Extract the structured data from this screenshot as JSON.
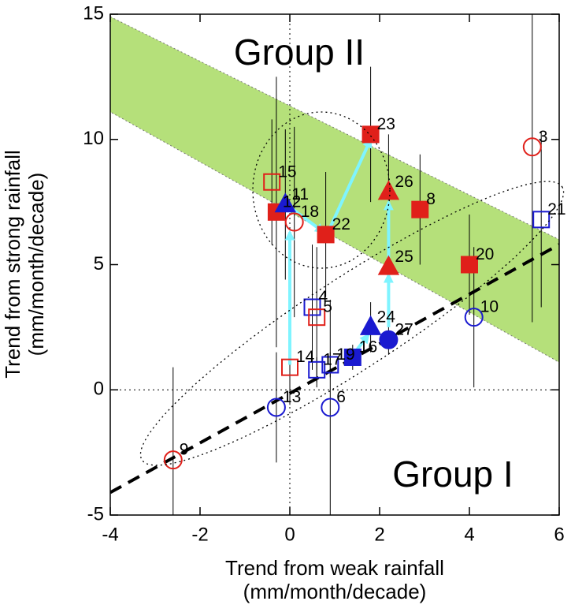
{
  "chart_data": {
    "type": "scatter",
    "title_group_upper": "Group II",
    "title_group_lower": "Group I",
    "x_label": [
      "Trend from weak rainfall",
      "(mm/month/decade)"
    ],
    "y_label": [
      "Trend from strong rainfall",
      "(mm/month/decade)"
    ],
    "xlim": [
      -4,
      6
    ],
    "ylim": [
      -5,
      15
    ],
    "xticks": [
      -4,
      -2,
      0,
      2,
      4,
      6
    ],
    "yticks": [
      -5,
      0,
      5,
      10,
      15
    ],
    "band": {
      "color": "#b5e07a",
      "x": [
        -4,
        6
      ],
      "upper": [
        14.9,
        6.0
      ],
      "lower": [
        11.1,
        1.1
      ]
    },
    "reference_line": {
      "x": [
        -4,
        6
      ],
      "y": [
        -4.1,
        5.8
      ]
    },
    "arrows": {
      "color": "#7ff4ff",
      "segments": [
        [
          0.0,
          1.0,
          0.0,
          6.3
        ],
        [
          0.0,
          7.3,
          0.75,
          6.3
        ],
        [
          0.85,
          6.3,
          1.8,
          10.0
        ],
        [
          1.45,
          1.5,
          1.75,
          2.2
        ],
        [
          2.2,
          2.5,
          2.2,
          4.6
        ],
        [
          2.2,
          5.1,
          2.2,
          7.5
        ]
      ]
    },
    "points": [
      {
        "label": "3",
        "x": 5.4,
        "y": 9.7,
        "yerr": 7,
        "marker": "circle",
        "filled": false,
        "color": "#e0201a"
      },
      {
        "label": "21",
        "x": 5.6,
        "y": 6.8,
        "yerr": 3.5,
        "marker": "square",
        "filled": false,
        "color": "#1a1ad0"
      },
      {
        "label": "20",
        "x": 4.0,
        "y": 5.0,
        "yerr": 2.0,
        "marker": "square",
        "filled": true,
        "color": "#e0201a"
      },
      {
        "label": "10",
        "x": 4.1,
        "y": 2.9,
        "yerr": 2.8,
        "marker": "circle",
        "filled": false,
        "color": "#1a1ad0"
      },
      {
        "label": "8",
        "x": 2.9,
        "y": 7.2,
        "yerr": 2.2,
        "marker": "square",
        "filled": true,
        "color": "#e0201a"
      },
      {
        "label": "26",
        "x": 2.2,
        "y": 7.9,
        "yerr": 2.3,
        "marker": "triangle",
        "filled": true,
        "color": "#e0201a"
      },
      {
        "label": "25",
        "x": 2.2,
        "y": 4.9,
        "yerr": 2.0,
        "marker": "triangle",
        "filled": true,
        "color": "#e0201a"
      },
      {
        "label": "23",
        "x": 1.8,
        "y": 10.2,
        "yerr": 2.7,
        "marker": "square",
        "filled": true,
        "color": "#e0201a"
      },
      {
        "label": "22",
        "x": 0.8,
        "y": 6.2,
        "yerr": 2.5,
        "marker": "square",
        "filled": true,
        "color": "#e0201a"
      },
      {
        "label": "15",
        "x": -0.4,
        "y": 8.3,
        "yerr": 2.5,
        "marker": "square",
        "filled": false,
        "color": "#e0201a"
      },
      {
        "label": "12",
        "x": -0.3,
        "y": 7.1,
        "yerr": 5.4,
        "marker": "square",
        "filled": true,
        "color": "#e0201a"
      },
      {
        "label": "11",
        "x": -0.1,
        "y": 7.4,
        "yerr": 3.0,
        "marker": "triangle",
        "filled": true,
        "color": "#1a1ad0"
      },
      {
        "label": "18",
        "x": 0.1,
        "y": 6.7,
        "yerr": 3.8,
        "marker": "circle",
        "filled": false,
        "color": "#e0201a"
      },
      {
        "label": "4",
        "x": 0.5,
        "y": 3.3,
        "yerr": 2.5,
        "marker": "square",
        "filled": false,
        "color": "#1a1ad0"
      },
      {
        "label": "5",
        "x": 0.6,
        "y": 2.9,
        "yerr": 2.8,
        "marker": "square",
        "filled": false,
        "color": "#e0201a"
      },
      {
        "label": "24",
        "x": 1.8,
        "y": 2.5,
        "yerr": 1.0,
        "marker": "triangle",
        "filled": true,
        "color": "#1a1ad0"
      },
      {
        "label": "27",
        "x": 2.2,
        "y": 2.0,
        "yerr": 0.6,
        "marker": "circle",
        "filled": true,
        "color": "#1a1ad0"
      },
      {
        "label": "16",
        "x": 1.4,
        "y": 1.3,
        "yerr": 0.5,
        "marker": "square",
        "filled": true,
        "color": "#1a1ad0"
      },
      {
        "label": "19",
        "x": 0.9,
        "y": 1.0,
        "yerr": 0.5,
        "marker": "square",
        "filled": false,
        "color": "#1a1ad0"
      },
      {
        "label": "17",
        "x": 0.6,
        "y": 0.8,
        "yerr": 0.5,
        "marker": "square",
        "filled": false,
        "color": "#1a1ad0"
      },
      {
        "label": "14",
        "x": 0.0,
        "y": 0.9,
        "yerr": 1.5,
        "marker": "square",
        "filled": false,
        "color": "#e0201a"
      },
      {
        "label": "13",
        "x": -0.3,
        "y": -0.7,
        "yerr": 2.2,
        "marker": "circle",
        "filled": false,
        "color": "#1a1ad0"
      },
      {
        "label": "6",
        "x": 0.9,
        "y": -0.7,
        "yerr": 4.3,
        "marker": "circle",
        "filled": false,
        "color": "#1a1ad0"
      },
      {
        "label": "9",
        "x": -2.6,
        "y": -2.8,
        "yerr": 3.7,
        "marker": "circle",
        "filled": false,
        "color": "#e0201a"
      }
    ]
  }
}
